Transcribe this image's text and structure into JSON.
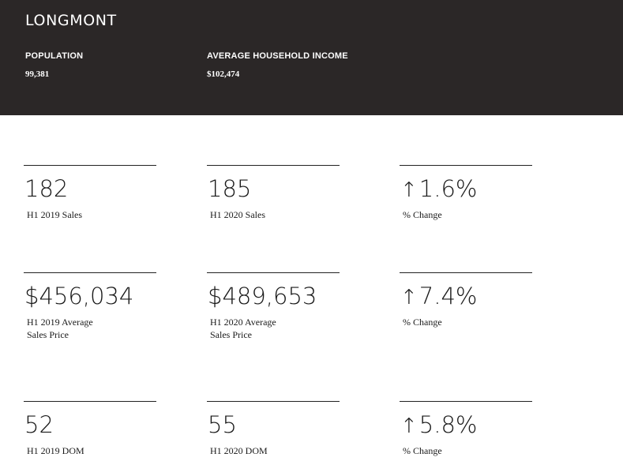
{
  "header": {
    "city": "LONGMONT",
    "population_label": "POPULATION",
    "population_value": "99,381",
    "income_label": "AVERAGE HOUSEHOLD INCOME",
    "income_value": "$102,474"
  },
  "stats": {
    "sales": {
      "h1_2019_value": "182",
      "h1_2019_label": "H1 2019 Sales",
      "h1_2020_value": "185",
      "h1_2020_label": "H1 2020 Sales",
      "change_arrow": "↑",
      "change_value": "1.6%",
      "change_label": "% Change"
    },
    "price": {
      "h1_2019_value": "$456,034",
      "h1_2019_label_line1": "H1 2019 Average",
      "h1_2019_label_line2": "Sales Price",
      "h1_2020_value": "$489,653",
      "h1_2020_label_line1": "H1 2020 Average",
      "h1_2020_label_line2": "Sales Price",
      "change_arrow": "↑",
      "change_value": "7.4%",
      "change_label": "% Change"
    },
    "dom": {
      "h1_2019_value": "52",
      "h1_2019_label": "H1 2019 DOM",
      "h1_2020_value": "55",
      "h1_2020_label": "H1 2020 DOM",
      "change_arrow": "↑",
      "change_value": "5.8%",
      "change_label": "% Change"
    }
  }
}
